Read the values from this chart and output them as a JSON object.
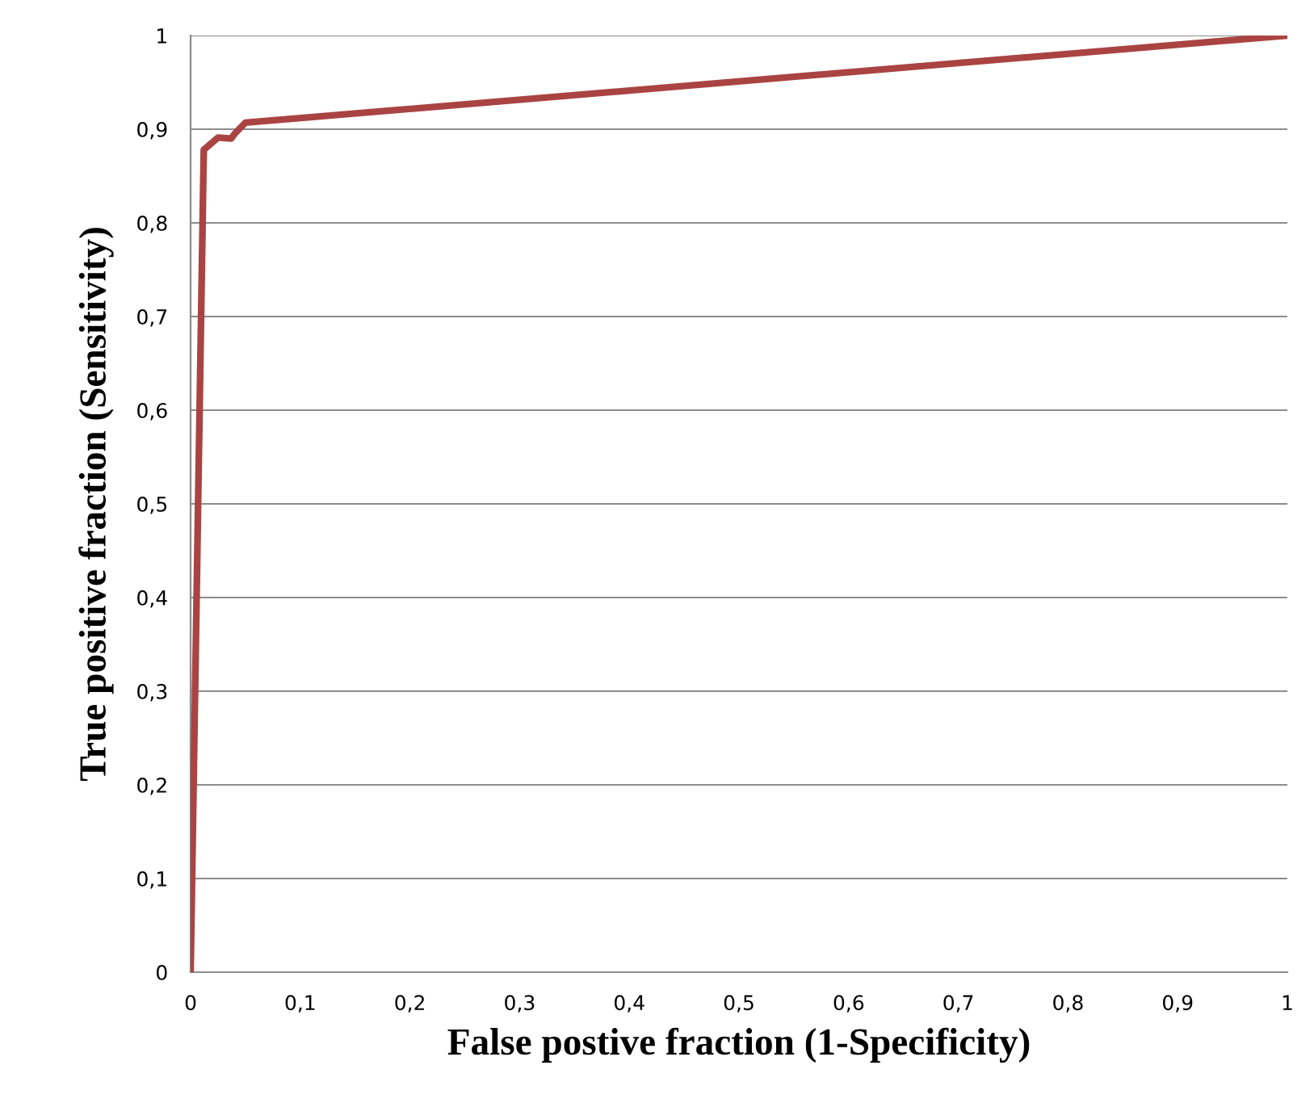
{
  "chart_data": {
    "type": "line",
    "xlabel": "False postive fraction (1-Specificity)",
    "ylabel": "True positive fraction (Sensitivity)",
    "x": [
      0,
      0.012,
      0.025,
      0.037,
      0.04,
      0.05,
      1
    ],
    "series": [
      {
        "color": "#a94442",
        "values": [
          0,
          0.878,
          0.891,
          0.89,
          0.895,
          0.907,
          1
        ]
      }
    ],
    "xlim": [
      0,
      1
    ],
    "ylim": [
      0,
      1
    ],
    "xticks": [
      0,
      {
        "value": 0.1,
        "label": "0,1"
      },
      {
        "value": 0.2,
        "label": "0,2"
      },
      {
        "value": 0.3,
        "label": "0,3"
      },
      {
        "value": 0.4,
        "label": "0,4"
      },
      {
        "value": 0.5,
        "label": "0,5"
      },
      {
        "value": 0.6,
        "label": "0,6"
      },
      {
        "value": 0.7,
        "label": "0,7"
      },
      {
        "value": 0.8,
        "label": "0,8"
      },
      {
        "value": 0.9,
        "label": "0,9"
      },
      1
    ],
    "yticks": [
      0,
      {
        "value": 0.1,
        "label": "0,1"
      },
      {
        "value": 0.2,
        "label": "0,2"
      },
      {
        "value": 0.3,
        "label": "0,3"
      },
      {
        "value": 0.4,
        "label": "0,4"
      },
      {
        "value": 0.5,
        "label": "0,5"
      },
      {
        "value": 0.6,
        "label": "0,6"
      },
      {
        "value": 0.7,
        "label": "0,7"
      },
      {
        "value": 0.8,
        "label": "0,8"
      },
      {
        "value": 0.9,
        "label": "0,9"
      },
      1
    ],
    "grid": "y",
    "marker": "none",
    "line_style": "solid"
  }
}
